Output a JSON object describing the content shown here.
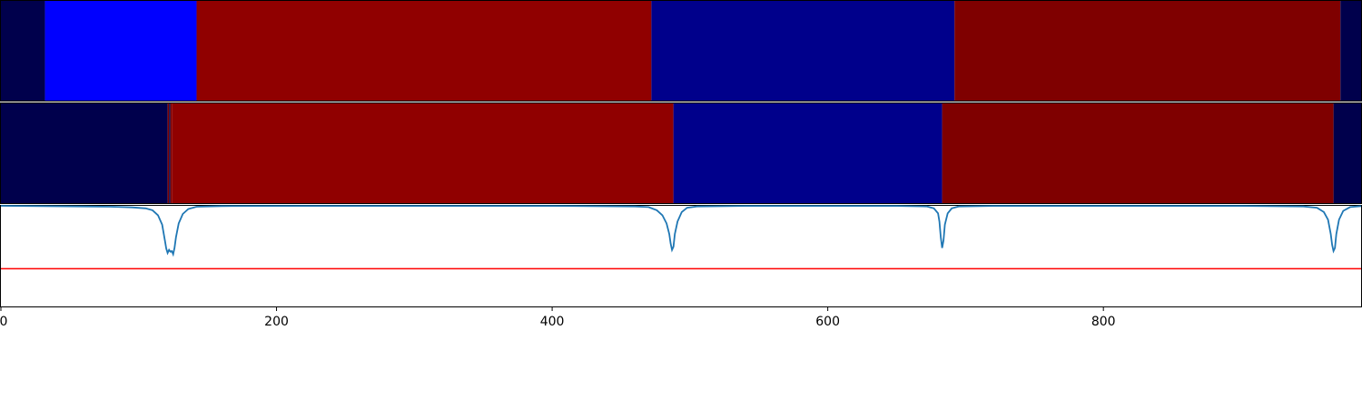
{
  "chart_data": {
    "type": "segmentation-timeline",
    "x_axis": {
      "ticks": [
        0,
        200,
        400,
        600,
        800
      ],
      "tick_labels": [
        "0",
        "200",
        "400",
        "600",
        "800"
      ],
      "xlim": [
        0,
        987
      ]
    },
    "tracks": [
      {
        "segments": [
          {
            "start": 0,
            "end": 32,
            "color": "#00004c"
          },
          {
            "start": 32,
            "end": 142,
            "color": "#0000ff"
          },
          {
            "start": 142,
            "end": 472,
            "color": "#900000"
          },
          {
            "start": 472,
            "end": 692,
            "color": "#00008b"
          },
          {
            "start": 692,
            "end": 972,
            "color": "#7f0000"
          },
          {
            "start": 972,
            "end": 987,
            "color": "#00004c"
          }
        ]
      },
      {
        "segments": [
          {
            "start": 0,
            "end": 121,
            "color": "#00004c"
          },
          {
            "start": 121,
            "end": 122,
            "color": "#7f0000"
          },
          {
            "start": 122,
            "end": 123,
            "color": "#00004c"
          },
          {
            "start": 123,
            "end": 124,
            "color": "#7f0000"
          },
          {
            "start": 124,
            "end": 488,
            "color": "#900000"
          },
          {
            "start": 488,
            "end": 683,
            "color": "#00008b"
          },
          {
            "start": 683,
            "end": 967,
            "color": "#7f0000"
          },
          {
            "start": 967,
            "end": 987,
            "color": "#00004c"
          }
        ]
      }
    ],
    "line_panel": {
      "ylim": [
        -0.6,
        1.0
      ],
      "series": {
        "color": "#1f77b4",
        "points": [
          [
            0,
            1.0
          ],
          [
            60,
            0.99
          ],
          [
            80,
            0.985
          ],
          [
            95,
            0.975
          ],
          [
            105,
            0.96
          ],
          [
            110,
            0.93
          ],
          [
            114,
            0.85
          ],
          [
            117,
            0.7
          ],
          [
            119,
            0.45
          ],
          [
            120,
            0.32
          ],
          [
            121,
            0.25
          ],
          [
            122,
            0.3
          ],
          [
            123,
            0.27
          ],
          [
            124,
            0.28
          ],
          [
            125,
            0.23
          ],
          [
            126,
            0.33
          ],
          [
            127,
            0.5
          ],
          [
            129,
            0.72
          ],
          [
            132,
            0.87
          ],
          [
            136,
            0.95
          ],
          [
            142,
            0.985
          ],
          [
            160,
            0.995
          ],
          [
            220,
            0.998
          ],
          [
            400,
            0.998
          ],
          [
            460,
            0.99
          ],
          [
            470,
            0.98
          ],
          [
            476,
            0.93
          ],
          [
            480,
            0.85
          ],
          [
            483,
            0.72
          ],
          [
            485,
            0.55
          ],
          [
            486,
            0.4
          ],
          [
            487,
            0.3
          ],
          [
            488,
            0.35
          ],
          [
            489,
            0.55
          ],
          [
            491,
            0.75
          ],
          [
            494,
            0.9
          ],
          [
            498,
            0.97
          ],
          [
            505,
            0.99
          ],
          [
            540,
            0.998
          ],
          [
            650,
            0.998
          ],
          [
            672,
            0.99
          ],
          [
            677,
            0.96
          ],
          [
            680,
            0.88
          ],
          [
            681,
            0.75
          ],
          [
            682,
            0.5
          ],
          [
            683,
            0.33
          ],
          [
            684,
            0.45
          ],
          [
            685,
            0.7
          ],
          [
            687,
            0.88
          ],
          [
            690,
            0.96
          ],
          [
            695,
            0.99
          ],
          [
            720,
            0.998
          ],
          [
            900,
            0.998
          ],
          [
            945,
            0.99
          ],
          [
            955,
            0.97
          ],
          [
            960,
            0.9
          ],
          [
            963,
            0.78
          ],
          [
            965,
            0.55
          ],
          [
            966,
            0.38
          ],
          [
            967,
            0.28
          ],
          [
            968,
            0.33
          ],
          [
            969,
            0.55
          ],
          [
            971,
            0.78
          ],
          [
            974,
            0.92
          ],
          [
            979,
            0.98
          ],
          [
            987,
            0.995
          ]
        ]
      },
      "threshold": {
        "value": 0.0,
        "color": "#ff0000"
      }
    }
  }
}
